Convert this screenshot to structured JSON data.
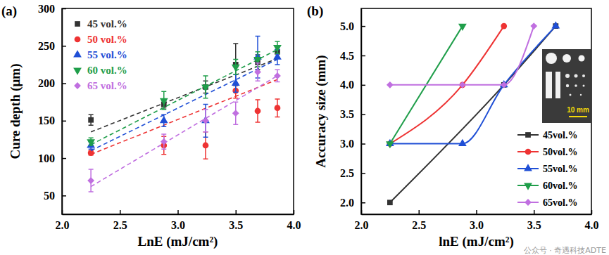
{
  "watermark": "公众号 · 奇遇科技ADTE",
  "chart_data": [
    {
      "type": "scatter",
      "panel_label": "(a)",
      "x_label": "LnE (mJ/cm²)",
      "y_label": "Cure depth (μm)",
      "xlim": [
        2.0,
        4.0
      ],
      "xticks": [
        {
          "value": 2.0,
          "label": "2.0"
        },
        2.5,
        {
          "value": 3.0,
          "label": "3.0"
        },
        3.5,
        {
          "value": 4.0,
          "label": "4.0"
        }
      ],
      "ylim": [
        25,
        300
      ],
      "yticks": [
        50,
        100,
        150,
        200,
        250,
        300
      ],
      "legend": "upper-left",
      "x": [
        2.25,
        2.88,
        3.24,
        3.5,
        3.69,
        3.86
      ],
      "series": [
        {
          "name": "45 vol.%",
          "color": "#333333",
          "marker": "square",
          "line_style": "dashed",
          "values": [
            151,
            172,
            195,
            225,
            228,
            242
          ],
          "errors": [
            7,
            5,
            8,
            28,
            10,
            8
          ],
          "fit": {
            "x": [
              2.25,
              3.86
            ],
            "values": [
              135,
              233
            ]
          }
        },
        {
          "name": "50 vol.%",
          "color": "#ee3333",
          "marker": "circle",
          "line_style": "dashed",
          "values": [
            107,
            117,
            117,
            190,
            163,
            167
          ],
          "errors": [
            3,
            12,
            18,
            10,
            15,
            12
          ],
          "fit": {
            "x": [
              2.25,
              3.86
            ],
            "values": [
              105,
              205
            ]
          }
        },
        {
          "name": "55 vol.%",
          "color": "#1f4fd6",
          "marker": "triangle-up",
          "line_style": "dashed",
          "values": [
            117,
            150,
            150,
            200,
            235,
            235
          ],
          "errors": [
            5,
            8,
            22,
            12,
            28,
            10
          ],
          "fit": {
            "x": [
              2.25,
              3.86
            ],
            "values": [
              110,
              232
            ]
          }
        },
        {
          "name": "60 vol.%",
          "color": "#1f9e4a",
          "marker": "triangle-down",
          "line_style": "dashed",
          "values": [
            122,
            177,
            195,
            222,
            232,
            248
          ],
          "errors": [
            5,
            12,
            15,
            10,
            10,
            8
          ],
          "fit": {
            "x": [
              2.25,
              3.86
            ],
            "values": [
              118,
              245
            ]
          }
        },
        {
          "name": "65 vol.%",
          "color": "#c06fe0",
          "marker": "diamond",
          "line_style": "dashed",
          "values": [
            70,
            122,
            150,
            160,
            215,
            210
          ],
          "errors": [
            15,
            10,
            15,
            15,
            12,
            8
          ],
          "fit": {
            "x": [
              2.25,
              3.86
            ],
            "values": [
              62,
              210
            ]
          }
        }
      ]
    },
    {
      "type": "line",
      "panel_label": "(b)",
      "x_label": "lnE (mJ/cm²)",
      "y_label": "Accuracy size (mm)",
      "xlim": [
        2.0,
        4.0
      ],
      "xticks": [
        {
          "value": 2.0,
          "label": "2.0"
        },
        2.5,
        {
          "value": 3.0,
          "label": "3.0"
        },
        3.5,
        {
          "value": 4.0,
          "label": "4.0"
        }
      ],
      "ylim": [
        1.8,
        5.3
      ],
      "yticks": [
        {
          "value": 2.0,
          "label": "2.0"
        },
        2.5,
        {
          "value": 3.0,
          "label": "3.0"
        },
        3.5,
        {
          "value": 4.0,
          "label": "4.0"
        },
        4.5,
        {
          "value": 5.0,
          "label": "5.0"
        }
      ],
      "legend": "lower-right",
      "inset": {
        "scale_label": "10 mm"
      },
      "series": [
        {
          "name": "45vol.%",
          "color": "#333333",
          "marker": "square",
          "line_style": "solid",
          "x": [
            2.25,
            3.24,
            3.69
          ],
          "values": [
            2.0,
            4.0,
            5.0
          ]
        },
        {
          "name": "50vol.%",
          "color": "#ee3333",
          "marker": "circle",
          "line_style": "solid",
          "x": [
            2.25,
            2.88,
            3.24
          ],
          "values": [
            3.0,
            4.0,
            5.0
          ]
        },
        {
          "name": "55vol.%",
          "color": "#1f4fd6",
          "marker": "triangle-up",
          "line_style": "solid",
          "x": [
            2.25,
            2.88,
            3.24,
            3.69
          ],
          "values": [
            3.0,
            3.0,
            4.0,
            5.0
          ]
        },
        {
          "name": "60vol.%",
          "color": "#1f9e4a",
          "marker": "triangle-down",
          "line_style": "solid",
          "x": [
            2.25,
            2.88
          ],
          "values": [
            3.0,
            5.0
          ]
        },
        {
          "name": "65vol.%",
          "color": "#c06fe0",
          "marker": "diamond",
          "line_style": "solid",
          "x": [
            2.25,
            2.88,
            3.24,
            3.5
          ],
          "values": [
            4.0,
            4.0,
            4.0,
            5.0
          ]
        }
      ]
    }
  ]
}
